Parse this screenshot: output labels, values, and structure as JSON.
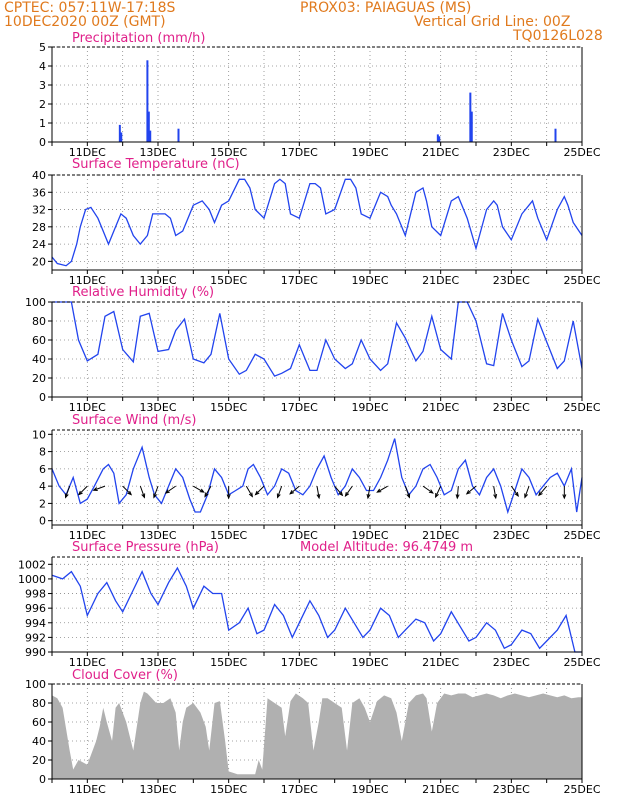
{
  "header": {
    "line1_left": "CPTEC:   057:11W-17:18S",
    "line1_right": "PROX03: PAIAGUAS (MS)",
    "line2_left": "10DEC2020 00Z (GMT)",
    "line2_right": "Vertical Grid Line: 00Z",
    "line3_right": "TQ0126L028"
  },
  "colors": {
    "header": "#e07a1e",
    "title": "#e0208a",
    "line": "#2244ee",
    "bar": "#2244ee",
    "cloud": "#b0b0b0",
    "arrow": "#000000"
  },
  "chart_data": [
    {
      "id": "precip",
      "type": "bar",
      "title": "Precipitation (mm/h)",
      "ylim": [
        0,
        5
      ],
      "yticks": [
        0,
        1,
        2,
        3,
        4,
        5
      ],
      "xlim": [
        10.0,
        25.0
      ],
      "xtick_labels": [
        "11DEC",
        "13DEC",
        "15DEC",
        "17DEC",
        "19DEC",
        "21DEC",
        "23DEC",
        "25DEC"
      ],
      "xtick_values": [
        11,
        13,
        15,
        17,
        19,
        21,
        23,
        25
      ],
      "grid": true,
      "x": [
        11.92,
        11.96,
        12.7,
        12.74,
        12.78,
        13.58,
        20.92,
        20.96,
        21.84,
        21.88,
        24.25
      ],
      "values": [
        0.9,
        0.5,
        4.3,
        1.6,
        0.6,
        0.7,
        0.4,
        0.3,
        2.6,
        1.6,
        0.7
      ]
    },
    {
      "id": "temp",
      "type": "line",
      "title": "Surface Temperature (nC)",
      "ylim": [
        18,
        40
      ],
      "yticks": [
        20,
        24,
        28,
        32,
        36,
        40
      ],
      "xlim": [
        10.0,
        25.0
      ],
      "xtick_labels": [
        "11DEC",
        "13DEC",
        "15DEC",
        "17DEC",
        "19DEC",
        "21DEC",
        "23DEC",
        "25DEC"
      ],
      "xtick_values": [
        11,
        13,
        15,
        17,
        19,
        21,
        23,
        25
      ],
      "grid": true,
      "x": [
        10.0,
        10.15,
        10.4,
        10.55,
        10.7,
        10.8,
        10.95,
        11.1,
        11.3,
        11.45,
        11.6,
        11.75,
        11.95,
        12.1,
        12.3,
        12.5,
        12.7,
        12.85,
        13.0,
        13.2,
        13.35,
        13.5,
        13.7,
        13.9,
        14.0,
        14.25,
        14.45,
        14.6,
        14.8,
        15.0,
        15.3,
        15.45,
        15.6,
        15.75,
        16.0,
        16.3,
        16.45,
        16.6,
        16.75,
        17.0,
        17.3,
        17.45,
        17.6,
        17.75,
        18.0,
        18.3,
        18.45,
        18.6,
        18.75,
        19.0,
        19.3,
        19.5,
        19.6,
        19.75,
        20.0,
        20.3,
        20.5,
        20.6,
        20.75,
        21.0,
        21.3,
        21.5,
        21.6,
        21.75,
        22.0,
        22.3,
        22.5,
        22.6,
        22.75,
        23.0,
        23.3,
        23.5,
        23.6,
        23.75,
        24.0,
        24.3,
        24.5,
        24.6,
        24.75,
        25.0
      ],
      "values": [
        21,
        19.5,
        19,
        20,
        24,
        28,
        32,
        32.5,
        30,
        27,
        24,
        27,
        31,
        30,
        26,
        24,
        26,
        31,
        31,
        31,
        30,
        26,
        27,
        31,
        33,
        34,
        32,
        29,
        33,
        34,
        39,
        39,
        37,
        32,
        30,
        38,
        39,
        38,
        31,
        30,
        38,
        38,
        37,
        31,
        32,
        39,
        39,
        37,
        31,
        30,
        36,
        35,
        33,
        31,
        26,
        36,
        37,
        34,
        28,
        26,
        34,
        35,
        33,
        30,
        23,
        32,
        34,
        33,
        28,
        25,
        31,
        33,
        34,
        30,
        25,
        32,
        35,
        33,
        29,
        26
      ]
    },
    {
      "id": "rh",
      "type": "line",
      "title": "Relative Humidity (%)",
      "ylim": [
        0,
        100
      ],
      "yticks": [
        0,
        20,
        40,
        60,
        80,
        100
      ],
      "xlim": [
        10.0,
        25.0
      ],
      "xtick_labels": [
        "11DEC",
        "13DEC",
        "15DEC",
        "17DEC",
        "19DEC",
        "21DEC",
        "23DEC",
        "25DEC"
      ],
      "xtick_values": [
        11,
        13,
        15,
        17,
        19,
        21,
        23,
        25
      ],
      "grid": true,
      "x": [
        10.0,
        10.55,
        10.75,
        11.0,
        11.3,
        11.5,
        11.75,
        12.0,
        12.3,
        12.5,
        12.75,
        13.0,
        13.3,
        13.5,
        13.75,
        14.0,
        14.3,
        14.5,
        14.75,
        15.0,
        15.3,
        15.5,
        15.75,
        16.0,
        16.3,
        16.5,
        16.75,
        17.0,
        17.3,
        17.5,
        17.75,
        18.0,
        18.3,
        18.5,
        18.75,
        19.0,
        19.3,
        19.5,
        19.75,
        20.0,
        20.3,
        20.5,
        20.75,
        21.0,
        21.3,
        21.5,
        21.75,
        22.0,
        22.3,
        22.5,
        22.75,
        23.0,
        23.3,
        23.5,
        23.75,
        24.0,
        24.3,
        24.5,
        24.75,
        25.0
      ],
      "values": [
        100,
        100,
        60,
        38,
        45,
        85,
        90,
        50,
        37,
        85,
        88,
        48,
        50,
        70,
        82,
        40,
        36,
        45,
        88,
        40,
        24,
        28,
        45,
        40,
        22,
        25,
        30,
        55,
        28,
        28,
        60,
        40,
        30,
        35,
        60,
        40,
        28,
        35,
        78,
        62,
        38,
        48,
        85,
        50,
        40,
        100,
        100,
        80,
        35,
        33,
        88,
        60,
        32,
        38,
        82,
        58,
        30,
        38,
        80,
        30
      ]
    },
    {
      "id": "wind",
      "type": "line",
      "title": "Surface Wind (m/s)",
      "ylim": [
        -0.5,
        10.5
      ],
      "yticks": [
        0,
        2,
        4,
        6,
        8,
        10
      ],
      "xlim": [
        10.0,
        25.0
      ],
      "xtick_labels": [
        "11DEC",
        "13DEC",
        "15DEC",
        "17DEC",
        "19DEC",
        "21DEC",
        "23DEC",
        "25DEC"
      ],
      "xtick_values": [
        11,
        13,
        15,
        17,
        19,
        21,
        23,
        25
      ],
      "grid": true,
      "x": [
        10.0,
        10.2,
        10.4,
        10.6,
        10.8,
        11.0,
        11.2,
        11.45,
        11.6,
        11.75,
        11.9,
        12.1,
        12.3,
        12.55,
        12.75,
        12.9,
        13.1,
        13.3,
        13.5,
        13.7,
        13.9,
        14.05,
        14.2,
        14.4,
        14.6,
        14.8,
        15.0,
        15.2,
        15.4,
        15.55,
        15.7,
        15.9,
        16.1,
        16.3,
        16.5,
        16.7,
        16.9,
        17.1,
        17.3,
        17.5,
        17.7,
        17.9,
        18.1,
        18.3,
        18.5,
        18.7,
        18.9,
        19.1,
        19.3,
        19.5,
        19.7,
        19.9,
        20.1,
        20.3,
        20.5,
        20.7,
        20.9,
        21.1,
        21.3,
        21.5,
        21.7,
        21.9,
        22.1,
        22.3,
        22.5,
        22.7,
        22.9,
        23.1,
        23.3,
        23.5,
        23.7,
        23.9,
        24.1,
        24.3,
        24.5,
        24.7,
        24.85,
        25.0
      ],
      "values": [
        6,
        4,
        3,
        5,
        2,
        2.5,
        4,
        6,
        6.5,
        5.5,
        2,
        3,
        6,
        8.5,
        5,
        3,
        2,
        4,
        6,
        5,
        2.5,
        1,
        1,
        3,
        6,
        5,
        3,
        3.5,
        4,
        6,
        6.5,
        5,
        3,
        4,
        6,
        5.5,
        3.5,
        3,
        4,
        6,
        7.5,
        5,
        3,
        4,
        6,
        5,
        3.5,
        3.5,
        5,
        7,
        9.5,
        5,
        3,
        4,
        6,
        6.5,
        5,
        3,
        3.5,
        6,
        7,
        4,
        3,
        5,
        6,
        4,
        1,
        3.5,
        6,
        5,
        3,
        4,
        5,
        5.5,
        4,
        6,
        1,
        5
      ]
    },
    {
      "id": "pressure",
      "type": "line",
      "title": "Surface Pressure (hPa)",
      "annotation": "Model Altitude: 96.4749 m",
      "ylim": [
        990,
        1003
      ],
      "yticks": [
        990,
        992,
        994,
        996,
        998,
        1000,
        1002
      ],
      "xlim": [
        10.0,
        25.0
      ],
      "xtick_labels": [
        "11DEC",
        "13DEC",
        "15DEC",
        "17DEC",
        "19DEC",
        "21DEC",
        "23DEC",
        "25DEC"
      ],
      "xtick_values": [
        11,
        13,
        15,
        17,
        19,
        21,
        23,
        25
      ],
      "grid": true,
      "x": [
        10.0,
        10.3,
        10.55,
        10.8,
        11.0,
        11.3,
        11.55,
        11.8,
        12.0,
        12.3,
        12.55,
        12.8,
        13.0,
        13.3,
        13.55,
        13.8,
        14.0,
        14.3,
        14.55,
        14.8,
        15.0,
        15.3,
        15.55,
        15.8,
        16.0,
        16.3,
        16.55,
        16.8,
        17.0,
        17.3,
        17.55,
        17.8,
        18.0,
        18.3,
        18.55,
        18.8,
        19.0,
        19.3,
        19.55,
        19.8,
        20.0,
        20.3,
        20.55,
        20.8,
        21.0,
        21.3,
        21.55,
        21.8,
        22.0,
        22.3,
        22.55,
        22.8,
        23.0,
        23.3,
        23.55,
        23.8,
        24.0,
        24.3,
        24.55,
        24.8,
        25.0
      ],
      "values": [
        1000.5,
        1000,
        1001,
        999,
        995,
        998,
        999.5,
        997,
        995.5,
        998.5,
        1001,
        998,
        996.5,
        999.5,
        1001.5,
        999,
        996,
        999,
        998,
        998,
        993,
        994,
        996,
        992.5,
        993,
        996.5,
        995,
        992,
        994,
        997,
        995,
        992,
        993,
        996,
        994,
        992,
        993,
        996,
        995,
        992,
        993,
        994.5,
        994,
        991.5,
        992.5,
        995.5,
        993.5,
        991.5,
        992,
        994,
        993,
        990.5,
        991,
        993,
        992.5,
        990.5,
        991.5,
        993,
        995,
        990,
        990
      ]
    },
    {
      "id": "cloud",
      "type": "area",
      "title": "Cloud Cover (%)",
      "ylim": [
        0,
        100
      ],
      "yticks": [
        0,
        20,
        40,
        60,
        80,
        100
      ],
      "xlim": [
        10.0,
        25.0
      ],
      "xtick_labels": [
        "11DEC",
        "13DEC",
        "15DEC",
        "17DEC",
        "19DEC",
        "21DEC",
        "23DEC",
        "25DEC"
      ],
      "xtick_values": [
        11,
        13,
        15,
        17,
        19,
        21,
        23,
        25
      ],
      "grid": true,
      "x": [
        10.0,
        10.15,
        10.3,
        10.5,
        10.6,
        10.75,
        11.0,
        11.25,
        11.35,
        11.45,
        11.55,
        11.7,
        11.8,
        11.9,
        12.1,
        12.3,
        12.5,
        12.6,
        12.7,
        12.75,
        12.95,
        13.15,
        13.35,
        13.5,
        13.6,
        13.7,
        13.8,
        14.0,
        14.2,
        14.35,
        14.45,
        14.6,
        14.75,
        14.9,
        15.0,
        15.25,
        15.5,
        15.75,
        15.85,
        15.95,
        16.1,
        16.3,
        16.5,
        16.6,
        16.75,
        16.9,
        17.1,
        17.25,
        17.4,
        17.55,
        17.65,
        17.8,
        18.0,
        18.2,
        18.35,
        18.5,
        18.7,
        18.85,
        19.0,
        19.2,
        19.4,
        19.6,
        19.75,
        19.9,
        20.1,
        20.3,
        20.5,
        20.6,
        20.75,
        20.9,
        21.1,
        21.3,
        21.5,
        21.7,
        21.9,
        22.1,
        22.3,
        22.5,
        22.7,
        22.9,
        23.1,
        23.3,
        23.5,
        23.7,
        23.9,
        24.1,
        24.3,
        24.5,
        24.7,
        24.9,
        25.0
      ],
      "values": [
        88,
        85,
        75,
        30,
        10,
        20,
        15,
        40,
        55,
        75,
        60,
        40,
        75,
        80,
        60,
        30,
        80,
        92,
        90,
        88,
        80,
        80,
        85,
        70,
        30,
        60,
        75,
        80,
        70,
        55,
        30,
        80,
        82,
        40,
        8,
        5,
        5,
        5,
        20,
        10,
        85,
        80,
        75,
        45,
        82,
        90,
        85,
        80,
        30,
        60,
        85,
        85,
        80,
        75,
        30,
        80,
        85,
        75,
        60,
        82,
        88,
        85,
        70,
        40,
        80,
        88,
        90,
        85,
        50,
        80,
        90,
        88,
        90,
        90,
        86,
        88,
        90,
        88,
        85,
        88,
        90,
        88,
        86,
        88,
        90,
        88,
        86,
        88,
        85,
        86,
        86
      ]
    }
  ]
}
